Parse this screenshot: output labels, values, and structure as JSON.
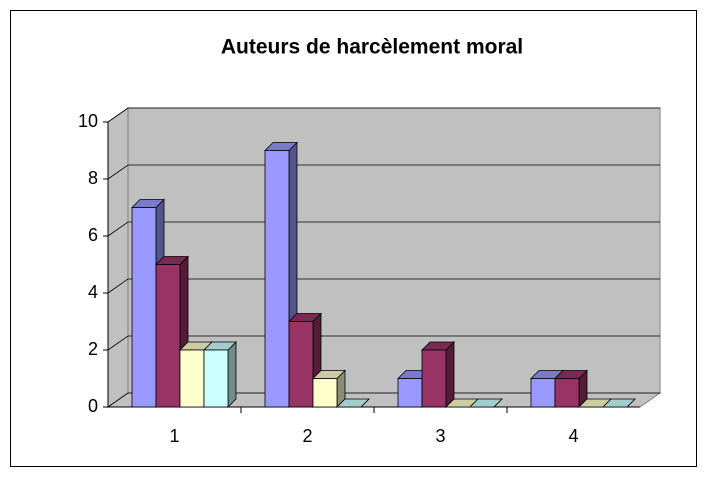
{
  "chart_data": {
    "type": "bar3d",
    "title": "Auteurs de harcèlement moral",
    "categories": [
      "1",
      "2",
      "3",
      "4"
    ],
    "series": [
      {
        "color": "#9999ff",
        "values": [
          7,
          9,
          1,
          1
        ]
      },
      {
        "color": "#993366",
        "values": [
          5,
          3,
          2,
          1
        ]
      },
      {
        "color": "#ffffcc",
        "values": [
          2,
          1,
          0,
          0
        ]
      },
      {
        "color": "#ccffff",
        "values": [
          2,
          0,
          0,
          0
        ]
      }
    ],
    "ylim": [
      0,
      10
    ],
    "yticks": [
      0,
      2,
      4,
      6,
      8,
      10
    ],
    "grid": true
  }
}
